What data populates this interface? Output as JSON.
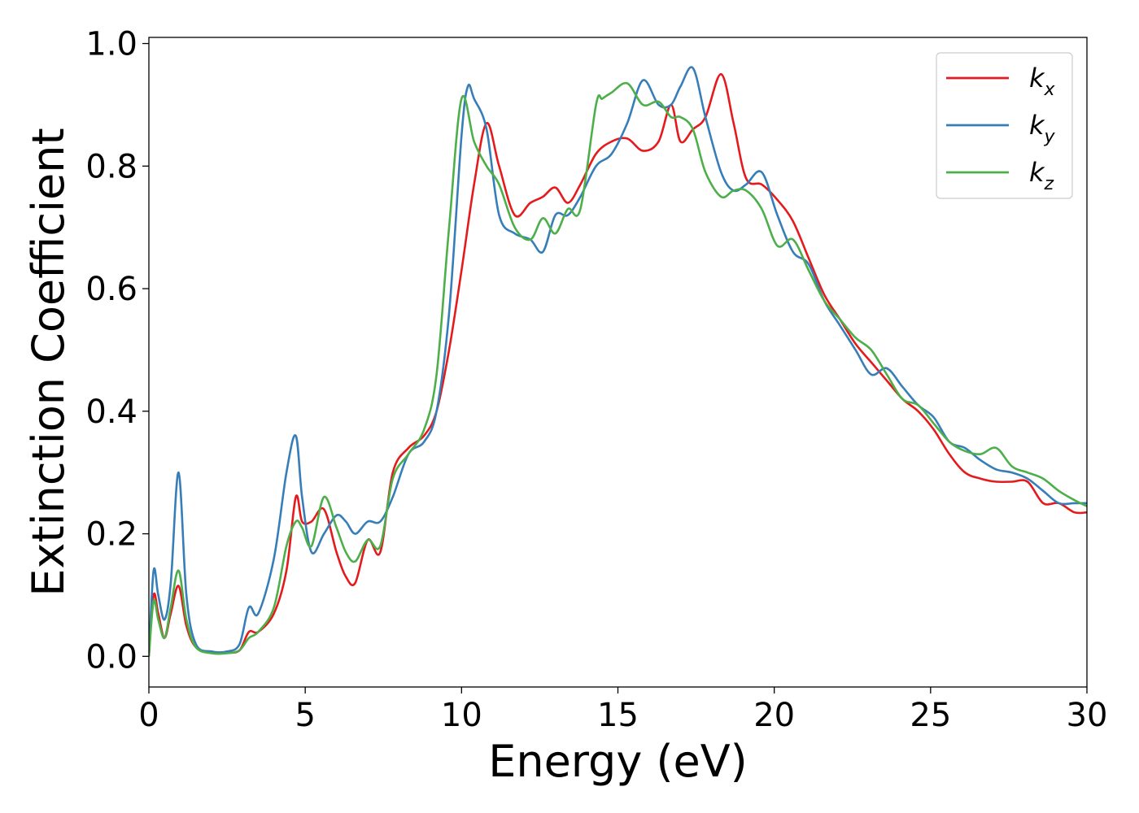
{
  "chart_data": {
    "type": "line",
    "xlabel": "Energy (eV)",
    "ylabel": "Extinction Coefficient",
    "xlim": [
      0,
      30
    ],
    "ylim": [
      -0.05,
      1.01
    ],
    "xticks": [
      0,
      5,
      10,
      15,
      20,
      25,
      30
    ],
    "yticks": [
      0.0,
      0.2,
      0.4,
      0.6,
      0.8,
      1.0
    ],
    "xtick_labels": [
      "0",
      "5",
      "10",
      "15",
      "20",
      "25",
      "30"
    ],
    "ytick_labels": [
      "0.0",
      "0.2",
      "0.4",
      "0.6",
      "0.8",
      "1.0"
    ],
    "grid": false,
    "legend_position": "top-right",
    "series": [
      {
        "name": "k_x",
        "label_main": "k",
        "label_sub": "x",
        "color": "#e41a1c",
        "x": [
          0.0,
          0.15,
          0.3,
          0.5,
          0.7,
          0.95,
          1.2,
          1.5,
          2.0,
          2.5,
          2.9,
          3.2,
          3.5,
          4.0,
          4.4,
          4.7,
          4.9,
          5.2,
          5.6,
          6.0,
          6.3,
          6.6,
          7.0,
          7.4,
          7.8,
          8.3,
          8.8,
          9.2,
          9.6,
          10.0,
          10.4,
          10.8,
          11.2,
          11.7,
          12.2,
          12.6,
          13.0,
          13.4,
          13.8,
          14.3,
          14.8,
          15.3,
          15.8,
          16.3,
          16.7,
          17.0,
          17.4,
          17.8,
          18.3,
          18.7,
          19.1,
          19.6,
          20.1,
          20.6,
          21.1,
          21.6,
          22.1,
          22.6,
          23.1,
          23.6,
          24.1,
          24.6,
          25.1,
          25.6,
          26.1,
          26.6,
          27.1,
          27.6,
          28.1,
          28.6,
          29.1,
          29.6,
          30.0
        ],
        "y": [
          0.0,
          0.1,
          0.07,
          0.03,
          0.07,
          0.115,
          0.05,
          0.015,
          0.006,
          0.006,
          0.01,
          0.04,
          0.04,
          0.07,
          0.14,
          0.26,
          0.22,
          0.22,
          0.24,
          0.17,
          0.13,
          0.12,
          0.19,
          0.17,
          0.3,
          0.34,
          0.36,
          0.4,
          0.5,
          0.63,
          0.77,
          0.87,
          0.8,
          0.72,
          0.74,
          0.75,
          0.765,
          0.74,
          0.77,
          0.82,
          0.84,
          0.845,
          0.825,
          0.84,
          0.9,
          0.84,
          0.86,
          0.88,
          0.95,
          0.87,
          0.78,
          0.77,
          0.745,
          0.71,
          0.65,
          0.59,
          0.55,
          0.51,
          0.48,
          0.45,
          0.42,
          0.4,
          0.37,
          0.33,
          0.3,
          0.29,
          0.285,
          0.285,
          0.285,
          0.25,
          0.25,
          0.235,
          0.235
        ]
      },
      {
        "name": "k_y",
        "label_main": "k",
        "label_sub": "y",
        "color": "#377eb8",
        "x": [
          0.0,
          0.15,
          0.3,
          0.5,
          0.7,
          0.95,
          1.2,
          1.5,
          2.0,
          2.5,
          2.9,
          3.2,
          3.5,
          4.0,
          4.4,
          4.7,
          4.9,
          5.2,
          5.6,
          6.0,
          6.3,
          6.6,
          7.0,
          7.4,
          7.8,
          8.3,
          8.8,
          9.2,
          9.6,
          10.0,
          10.2,
          10.4,
          10.8,
          11.2,
          11.7,
          12.2,
          12.6,
          13.0,
          13.4,
          13.8,
          14.3,
          14.8,
          15.3,
          15.8,
          16.3,
          16.7,
          17.0,
          17.4,
          17.8,
          18.3,
          18.7,
          19.1,
          19.6,
          20.1,
          20.6,
          21.1,
          21.6,
          22.1,
          22.6,
          23.1,
          23.6,
          24.1,
          24.6,
          25.1,
          25.6,
          26.1,
          26.6,
          27.1,
          27.6,
          28.1,
          28.6,
          29.1,
          29.6,
          30.0
        ],
        "y": [
          0.0,
          0.14,
          0.1,
          0.06,
          0.12,
          0.3,
          0.1,
          0.02,
          0.008,
          0.008,
          0.02,
          0.08,
          0.07,
          0.16,
          0.3,
          0.36,
          0.26,
          0.17,
          0.2,
          0.23,
          0.22,
          0.2,
          0.22,
          0.22,
          0.26,
          0.33,
          0.35,
          0.4,
          0.56,
          0.85,
          0.93,
          0.91,
          0.86,
          0.72,
          0.69,
          0.68,
          0.66,
          0.72,
          0.72,
          0.75,
          0.8,
          0.82,
          0.87,
          0.94,
          0.9,
          0.9,
          0.93,
          0.96,
          0.88,
          0.79,
          0.76,
          0.77,
          0.79,
          0.72,
          0.66,
          0.64,
          0.58,
          0.54,
          0.5,
          0.46,
          0.47,
          0.44,
          0.41,
          0.39,
          0.35,
          0.34,
          0.32,
          0.305,
          0.3,
          0.29,
          0.27,
          0.25,
          0.25,
          0.25
        ]
      },
      {
        "name": "k_z",
        "label_main": "k",
        "label_sub": "z",
        "color": "#4daf4a",
        "x": [
          0.0,
          0.15,
          0.3,
          0.5,
          0.7,
          0.95,
          1.2,
          1.5,
          2.0,
          2.5,
          2.9,
          3.2,
          3.5,
          4.0,
          4.4,
          4.7,
          4.9,
          5.2,
          5.6,
          6.0,
          6.3,
          6.6,
          7.0,
          7.4,
          7.8,
          8.3,
          8.8,
          9.2,
          9.6,
          10.0,
          10.4,
          10.8,
          11.2,
          11.7,
          12.2,
          12.6,
          13.0,
          13.4,
          13.8,
          14.3,
          14.5,
          14.8,
          15.3,
          15.8,
          16.3,
          16.7,
          17.0,
          17.4,
          17.8,
          18.3,
          18.7,
          19.1,
          19.6,
          20.1,
          20.6,
          21.1,
          21.6,
          22.1,
          22.6,
          23.1,
          23.6,
          24.1,
          24.6,
          25.1,
          25.6,
          26.1,
          26.6,
          27.1,
          27.6,
          28.1,
          28.6,
          29.1,
          29.6,
          30.0
        ],
        "y": [
          0.0,
          0.09,
          0.06,
          0.03,
          0.08,
          0.14,
          0.06,
          0.015,
          0.005,
          0.005,
          0.01,
          0.03,
          0.04,
          0.08,
          0.18,
          0.22,
          0.21,
          0.18,
          0.26,
          0.21,
          0.17,
          0.155,
          0.19,
          0.18,
          0.29,
          0.33,
          0.37,
          0.46,
          0.7,
          0.91,
          0.84,
          0.8,
          0.77,
          0.7,
          0.68,
          0.715,
          0.69,
          0.73,
          0.73,
          0.9,
          0.91,
          0.92,
          0.935,
          0.9,
          0.905,
          0.88,
          0.88,
          0.86,
          0.79,
          0.75,
          0.76,
          0.76,
          0.73,
          0.67,
          0.68,
          0.63,
          0.58,
          0.55,
          0.52,
          0.5,
          0.46,
          0.42,
          0.41,
          0.38,
          0.35,
          0.335,
          0.33,
          0.34,
          0.31,
          0.3,
          0.29,
          0.27,
          0.255,
          0.245
        ]
      }
    ]
  }
}
